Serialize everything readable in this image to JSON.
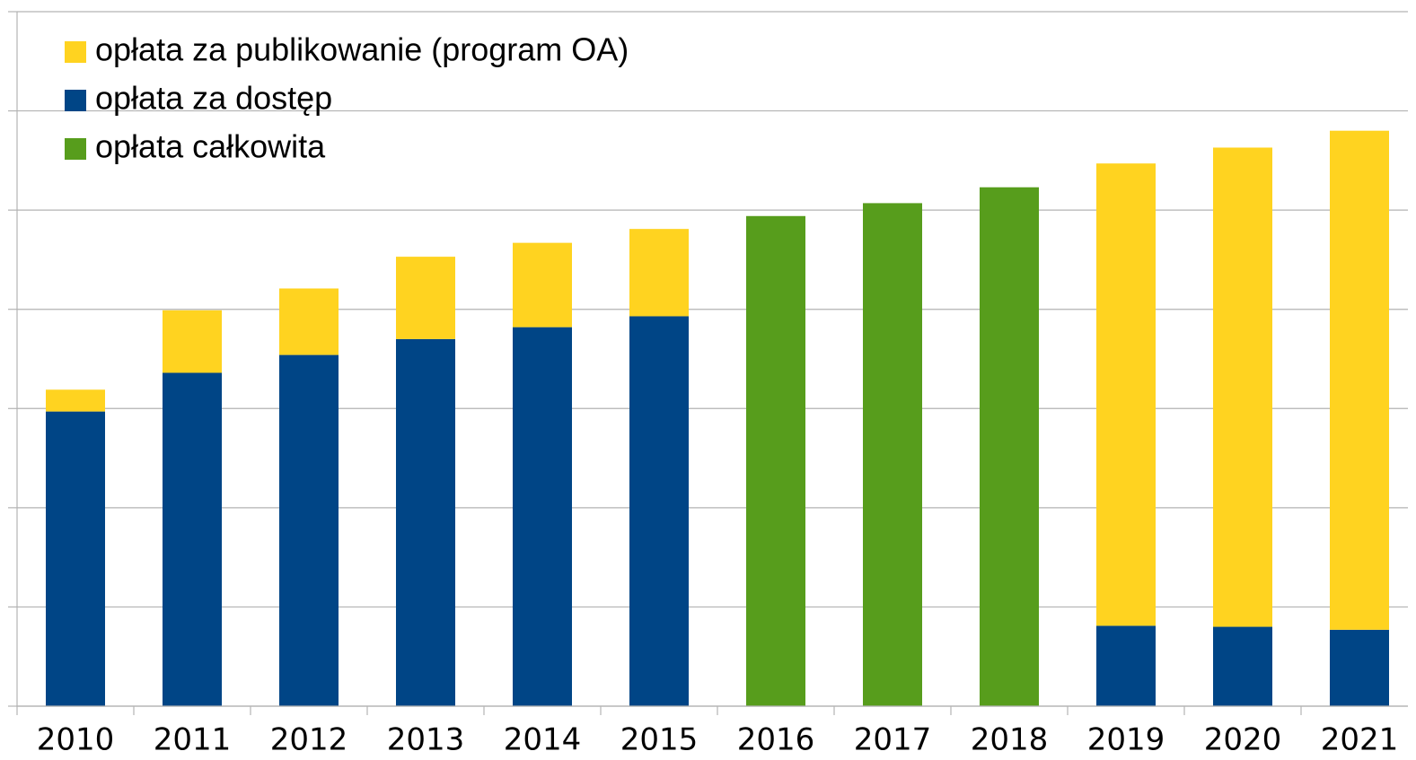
{
  "chart_data": {
    "type": "stacked_bar",
    "categories": [
      "2010",
      "2011",
      "2012",
      "2013",
      "2014",
      "2015",
      "2016",
      "2017",
      "2018",
      "2019",
      "2020",
      "2021"
    ],
    "series": [
      {
        "name": "opłata za publikowanie (program OA)",
        "color": "#ffd320",
        "values": [
          0.22,
          0.63,
          0.67,
          0.83,
          0.85,
          0.88,
          null,
          null,
          null,
          4.66,
          4.83,
          5.03
        ]
      },
      {
        "name": "opłata za dostęp",
        "color": "#004586",
        "values": [
          2.97,
          3.36,
          3.54,
          3.7,
          3.82,
          3.93,
          null,
          null,
          null,
          0.81,
          0.8,
          0.77
        ]
      },
      {
        "name": "opłata całkowita",
        "color": "#579d1c",
        "values": [
          null,
          null,
          null,
          null,
          null,
          null,
          4.94,
          5.07,
          5.23,
          null,
          null,
          null
        ]
      }
    ],
    "ylim": [
      0,
      7
    ],
    "yticks": [
      0,
      1,
      2,
      3,
      4,
      5,
      6,
      7
    ],
    "grid": true
  }
}
